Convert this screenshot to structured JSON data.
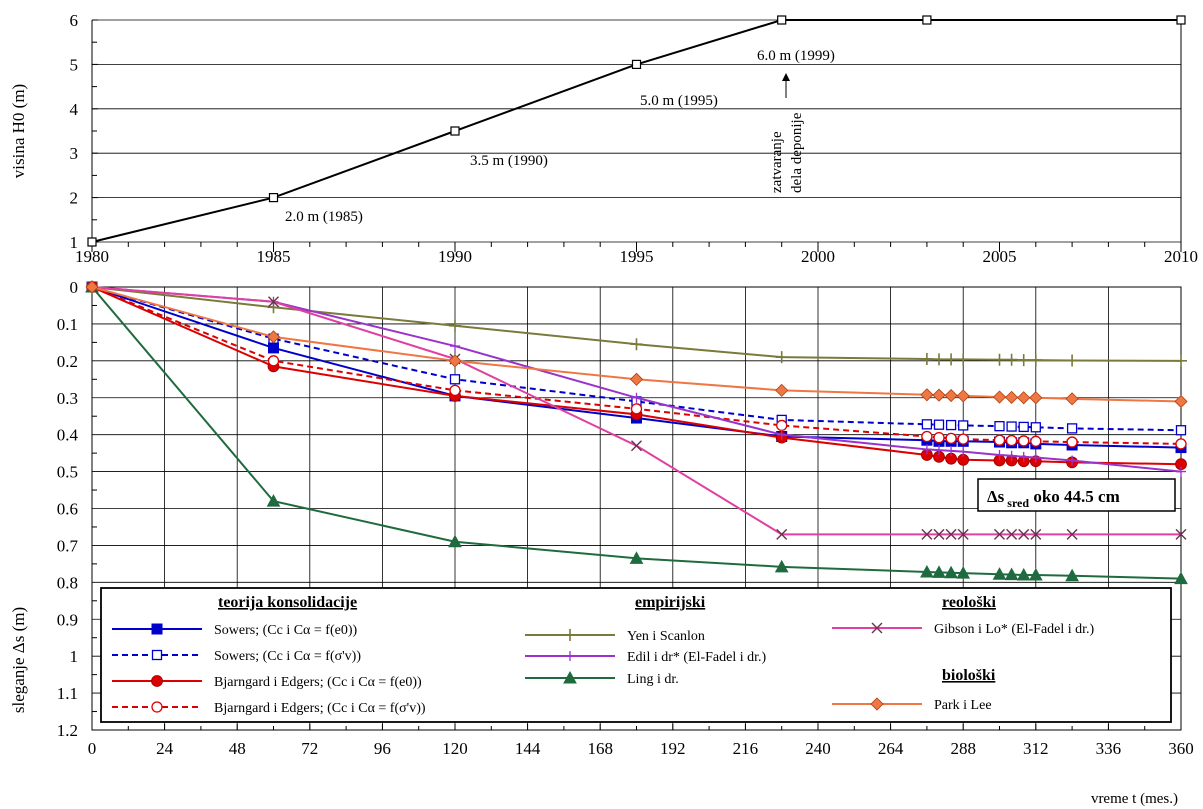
{
  "chart_data": [
    {
      "type": "line",
      "ylabel": "visina H0 (m)",
      "ylim": [
        1,
        6
      ],
      "yticks": [
        "1",
        "2",
        "3",
        "4",
        "5",
        "6"
      ],
      "xlim": [
        1980,
        2010
      ],
      "xticks": [
        "1980",
        "1985",
        "1990",
        "1995",
        "2000",
        "2005",
        "2010"
      ],
      "grid": "horizontal",
      "series": [
        {
          "x": [
            1980,
            1985,
            1990,
            1995,
            1999,
            2003,
            2010
          ],
          "y": [
            1,
            2,
            3.5,
            5,
            6,
            6,
            6
          ],
          "color": "#000000",
          "marker": "open-square"
        }
      ],
      "annotations": [
        {
          "text": "2.0 m (1985)",
          "x": 1985,
          "y": 2
        },
        {
          "text": "3.5 m (1990)",
          "x": 1990,
          "y": 3.5
        },
        {
          "text": "5.0 m (1995)",
          "x": 1995,
          "y": 5
        },
        {
          "text": "6.0 m (1999)",
          "x": 1999,
          "y": 6
        },
        {
          "text": "zatvaranje",
          "x": 1999,
          "y": 4.2
        },
        {
          "text": "dela deponije",
          "x": 1999,
          "y": 4.2
        }
      ]
    },
    {
      "type": "line",
      "xlabel": "vreme t  (mes.)",
      "ylabel": "sleganje  Δs (m)",
      "xlim": [
        0,
        360
      ],
      "ylim": [
        1.2,
        0
      ],
      "xticks": [
        "0",
        "24",
        "48",
        "72",
        "96",
        "120",
        "144",
        "168",
        "192",
        "216",
        "240",
        "264",
        "288",
        "312",
        "336",
        "360"
      ],
      "yticks": [
        "0",
        "0.1",
        "0.2",
        "0.3",
        "0.4",
        "0.5",
        "0.6",
        "0.7",
        "0.8",
        "0.9",
        "1",
        "1.1",
        "1.2"
      ],
      "grid": "both",
      "series": [
        {
          "name": "Sowers; (Cc i Cα = f(e0))",
          "group": "teorija konsolidacije",
          "color": "#0000cc",
          "dash": "",
          "marker": "square-filled",
          "x": [
            0,
            60,
            120,
            180,
            228,
            276,
            280,
            284,
            288,
            300,
            304,
            308,
            312,
            324,
            360
          ],
          "y": [
            0,
            0.165,
            0.295,
            0.355,
            0.405,
            0.415,
            0.418,
            0.418,
            0.418,
            0.42,
            0.422,
            0.422,
            0.425,
            0.428,
            0.435
          ]
        },
        {
          "name": "Sowers; (Cc i Cα = f(σ'v))",
          "group": "teorija konsolidacije",
          "color": "#0000cc",
          "dash": "6,4",
          "marker": "square-open",
          "x": [
            0,
            60,
            120,
            180,
            228,
            276,
            280,
            284,
            288,
            300,
            304,
            308,
            312,
            324,
            360
          ],
          "y": [
            0,
            0.14,
            0.25,
            0.31,
            0.36,
            0.372,
            0.373,
            0.374,
            0.375,
            0.377,
            0.378,
            0.379,
            0.38,
            0.383,
            0.388
          ]
        },
        {
          "name": "Bjarngard i Edgers; (Cc i Cα = f(e0))",
          "group": "teorija konsolidacije",
          "color": "#dd0000",
          "dash": "",
          "marker": "circle-filled",
          "x": [
            0,
            60,
            120,
            180,
            228,
            276,
            280,
            284,
            288,
            300,
            304,
            308,
            312,
            324,
            360
          ],
          "y": [
            0,
            0.215,
            0.295,
            0.345,
            0.408,
            0.455,
            0.46,
            0.465,
            0.468,
            0.47,
            0.47,
            0.472,
            0.472,
            0.475,
            0.48
          ]
        },
        {
          "name": "Bjarngard i Edgers; (Cc i Cα = f(σ'v))",
          "group": "teorija konsolidacije",
          "color": "#dd0000",
          "dash": "6,4",
          "marker": "circle-open",
          "x": [
            0,
            60,
            120,
            180,
            228,
            276,
            280,
            284,
            288,
            300,
            304,
            308,
            312,
            324,
            360
          ],
          "y": [
            0,
            0.2,
            0.28,
            0.33,
            0.375,
            0.405,
            0.408,
            0.41,
            0.412,
            0.415,
            0.416,
            0.417,
            0.418,
            0.42,
            0.425
          ]
        },
        {
          "name": "Yen i Scanlon",
          "group": "empirijski",
          "color": "#7a7a3a",
          "dash": "",
          "marker": "plus",
          "x": [
            0,
            60,
            120,
            180,
            228,
            276,
            280,
            284,
            288,
            300,
            304,
            308,
            312,
            324,
            360
          ],
          "y": [
            0,
            0.055,
            0.105,
            0.155,
            0.19,
            0.195,
            0.196,
            0.196,
            0.196,
            0.197,
            0.197,
            0.198,
            0.198,
            0.199,
            0.2
          ]
        },
        {
          "name": "Edil i dr* (El-Fadel i dr.)",
          "group": "empirijski",
          "color": "#9933cc",
          "dash": "",
          "marker": "plus-circle",
          "x": [
            0,
            60,
            120,
            180,
            228,
            276,
            280,
            284,
            288,
            300,
            304,
            308,
            312,
            324,
            360
          ],
          "y": [
            0,
            0.04,
            0.16,
            0.3,
            0.4,
            0.44,
            0.442,
            0.444,
            0.446,
            0.455,
            0.457,
            0.46,
            0.462,
            0.47,
            0.5
          ]
        },
        {
          "name": "Ling i dr.",
          "group": "empirijski",
          "color": "#1f6b3f",
          "dash": "",
          "marker": "triangle-filled",
          "x": [
            0,
            60,
            120,
            180,
            228,
            276,
            280,
            284,
            288,
            300,
            304,
            308,
            312,
            324,
            360
          ],
          "y": [
            0,
            0.58,
            0.69,
            0.735,
            0.758,
            0.772,
            0.773,
            0.774,
            0.775,
            0.778,
            0.779,
            0.78,
            0.78,
            0.782,
            0.79
          ]
        },
        {
          "name": "Gibson i Lo* (El-Fadel i dr.)",
          "group": "reološki",
          "color": "#e040a0",
          "dash": "",
          "marker": "x",
          "x": [
            0,
            60,
            120,
            180,
            228,
            276,
            280,
            284,
            288,
            300,
            304,
            308,
            312,
            324,
            360
          ],
          "y": [
            0,
            0.04,
            0.195,
            0.43,
            0.67,
            0.67,
            0.67,
            0.67,
            0.67,
            0.67,
            0.67,
            0.67,
            0.67,
            0.67,
            0.67
          ]
        },
        {
          "name": "Park i Lee",
          "group": "biološki",
          "color": "#ee7744",
          "dash": "",
          "marker": "diamond-filled",
          "x": [
            0,
            60,
            120,
            180,
            228,
            276,
            280,
            284,
            288,
            300,
            304,
            308,
            312,
            324,
            360
          ],
          "y": [
            0,
            0.135,
            0.2,
            0.25,
            0.28,
            0.292,
            0.293,
            0.294,
            0.295,
            0.298,
            0.299,
            0.3,
            0.3,
            0.303,
            0.31
          ]
        }
      ],
      "legend": {
        "placement": "bottom-left",
        "headers": [
          "teorija konsolidacije",
          "empirijski",
          "reološki",
          "biološki"
        ]
      },
      "annotation_box": {
        "label": "Δs",
        "subscript": "sred",
        "text": "oko 44.5 cm"
      }
    }
  ]
}
